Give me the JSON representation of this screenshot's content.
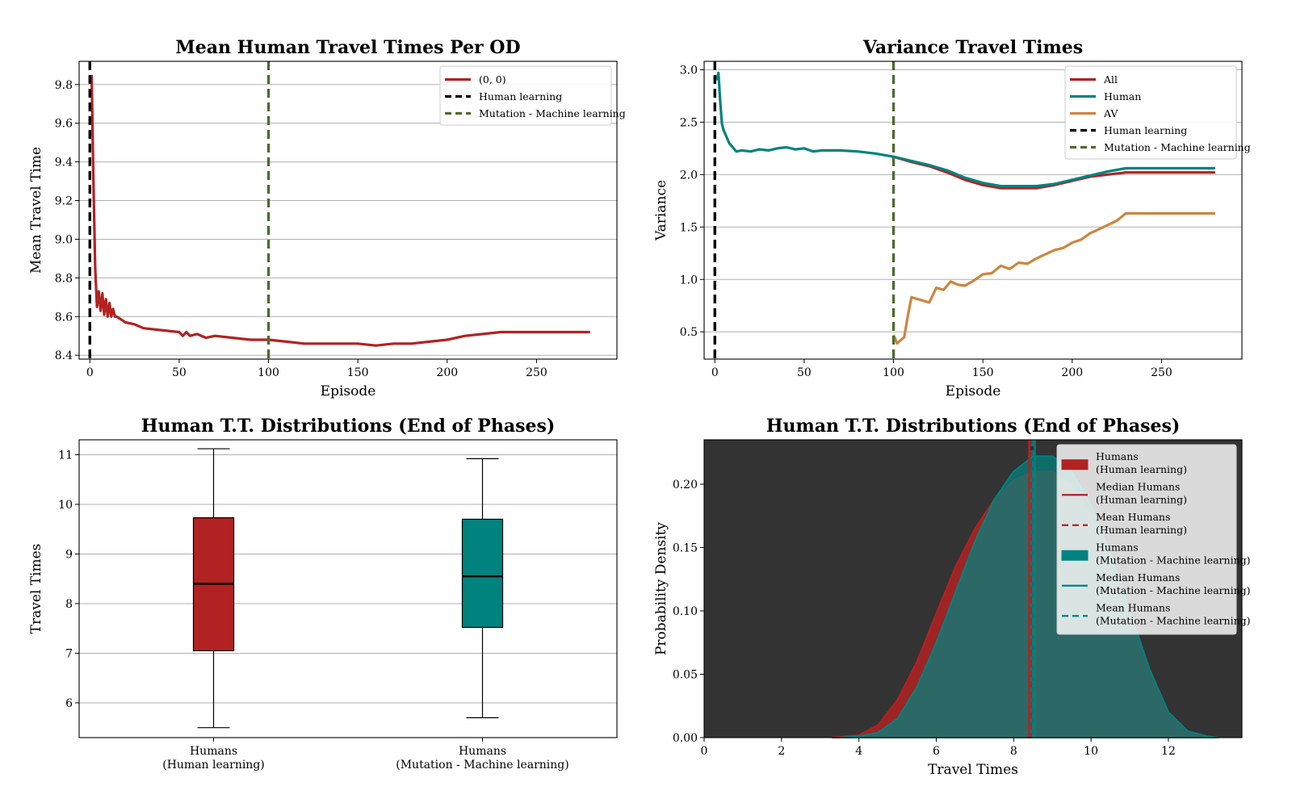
{
  "chart_data": [
    {
      "type": "line",
      "title": "Mean Human Travel Times Per OD",
      "xlabel": "Episode",
      "ylabel": "Mean Travel Time",
      "xlim": [
        -6,
        295
      ],
      "ylim": [
        8.38,
        9.92
      ],
      "xticks": [
        0,
        50,
        100,
        150,
        200,
        250
      ],
      "yticks": [
        8.4,
        8.6,
        8.8,
        9.0,
        9.2,
        9.4,
        9.6,
        9.8
      ],
      "ytick_labels": [
        "8.4",
        "8.6",
        "8.8",
        "9.0",
        "9.2",
        "9.4",
        "9.6",
        "9.8"
      ],
      "grid": "horizontal",
      "legend_position": "top-right",
      "series": [
        {
          "name": "(0, 0)",
          "color": "#b22222",
          "x": [
            1,
            2,
            3,
            4,
            5,
            6,
            7,
            8,
            9,
            10,
            11,
            12,
            13,
            14,
            15,
            20,
            25,
            30,
            40,
            50,
            52,
            54,
            56,
            60,
            65,
            70,
            80,
            90,
            100,
            110,
            120,
            130,
            140,
            150,
            160,
            170,
            180,
            190,
            200,
            210,
            220,
            230,
            240,
            250,
            260,
            270,
            280
          ],
          "y": [
            9.85,
            9.3,
            8.85,
            8.65,
            8.73,
            8.63,
            8.72,
            8.61,
            8.69,
            8.6,
            8.67,
            8.6,
            8.64,
            8.6,
            8.6,
            8.57,
            8.56,
            8.54,
            8.53,
            8.52,
            8.5,
            8.52,
            8.5,
            8.51,
            8.49,
            8.5,
            8.49,
            8.48,
            8.48,
            8.47,
            8.46,
            8.46,
            8.46,
            8.46,
            8.45,
            8.46,
            8.46,
            8.47,
            8.48,
            8.5,
            8.51,
            8.52,
            8.52,
            8.52,
            8.52,
            8.52,
            8.52
          ]
        },
        {
          "name": "Human learning",
          "color": "#000000",
          "style": "dashed",
          "vline": 0
        },
        {
          "name": "Mutation - Machine learning",
          "color": "#4e6b2e",
          "style": "dashed",
          "vline": 100
        }
      ]
    },
    {
      "type": "line",
      "title": "Variance Travel Times",
      "xlabel": "Episode",
      "ylabel": "Variance",
      "xlim": [
        -6,
        295
      ],
      "ylim": [
        0.24,
        3.08
      ],
      "xticks": [
        0,
        50,
        100,
        150,
        200,
        250
      ],
      "yticks": [
        0.5,
        1.0,
        1.5,
        2.0,
        2.5,
        3.0
      ],
      "ytick_labels": [
        "0.5",
        "1.0",
        "1.5",
        "2.0",
        "2.5",
        "3.0"
      ],
      "grid": "horizontal",
      "legend_position": "top-right",
      "series": [
        {
          "name": "All",
          "color": "#b22222",
          "x": [
            100,
            110,
            120,
            130,
            140,
            150,
            160,
            170,
            180,
            190,
            200,
            210,
            220,
            230,
            240,
            250,
            260,
            270,
            280
          ],
          "y": [
            2.17,
            2.12,
            2.08,
            2.02,
            1.95,
            1.9,
            1.87,
            1.87,
            1.87,
            1.9,
            1.94,
            1.98,
            2.0,
            2.02,
            2.02,
            2.02,
            2.02,
            2.02,
            2.02
          ]
        },
        {
          "name": "Human",
          "color": "#00827f",
          "x": [
            1,
            2,
            3,
            4,
            5,
            6,
            8,
            10,
            12,
            15,
            20,
            25,
            30,
            35,
            40,
            45,
            50,
            55,
            60,
            70,
            80,
            90,
            100,
            110,
            120,
            130,
            140,
            150,
            160,
            170,
            180,
            190,
            200,
            210,
            220,
            230,
            240,
            250,
            260,
            270,
            280
          ],
          "y": [
            2.9,
            2.97,
            2.7,
            2.48,
            2.42,
            2.38,
            2.3,
            2.26,
            2.22,
            2.23,
            2.22,
            2.24,
            2.23,
            2.25,
            2.26,
            2.24,
            2.25,
            2.22,
            2.23,
            2.23,
            2.22,
            2.2,
            2.17,
            2.13,
            2.09,
            2.04,
            1.97,
            1.92,
            1.89,
            1.89,
            1.89,
            1.91,
            1.95,
            1.99,
            2.03,
            2.06,
            2.06,
            2.06,
            2.06,
            2.06,
            2.06
          ]
        },
        {
          "name": "AV",
          "color": "#cd853f",
          "x": [
            100,
            102,
            104,
            106,
            108,
            110,
            112,
            116,
            120,
            124,
            128,
            132,
            136,
            140,
            145,
            150,
            155,
            160,
            165,
            170,
            175,
            180,
            185,
            190,
            195,
            200,
            205,
            210,
            215,
            220,
            225,
            230,
            240,
            250,
            260,
            270,
            280
          ],
          "y": [
            0.47,
            0.39,
            0.42,
            0.45,
            0.65,
            0.83,
            0.82,
            0.8,
            0.78,
            0.92,
            0.9,
            0.98,
            0.95,
            0.94,
            0.99,
            1.05,
            1.06,
            1.13,
            1.1,
            1.16,
            1.15,
            1.2,
            1.24,
            1.28,
            1.3,
            1.35,
            1.38,
            1.44,
            1.48,
            1.52,
            1.56,
            1.63,
            1.63,
            1.63,
            1.63,
            1.63,
            1.63
          ]
        },
        {
          "name": "Human learning",
          "color": "#000000",
          "style": "dashed",
          "vline": 0
        },
        {
          "name": "Mutation - Machine learning",
          "color": "#4e6b2e",
          "style": "dashed",
          "vline": 100
        }
      ]
    },
    {
      "type": "box",
      "title": "Human T.T. Distributions (End of Phases)",
      "ylabel": "Travel Times",
      "categories": [
        "Humans\n(Human learning)",
        "Humans\n(Mutation - Machine learning)"
      ],
      "category_lines": [
        [
          "Humans",
          "(Human learning)"
        ],
        [
          "Humans",
          "(Mutation - Machine learning)"
        ]
      ],
      "ylim": [
        5.3,
        11.3
      ],
      "yticks": [
        6,
        7,
        8,
        9,
        10,
        11
      ],
      "grid": "horizontal",
      "boxes": [
        {
          "color": "#b22222",
          "whisker_low": 5.5,
          "q1": 7.05,
          "median": 8.4,
          "q3": 9.73,
          "whisker_high": 11.12
        },
        {
          "color": "#00827f",
          "whisker_low": 5.7,
          "q1": 7.52,
          "median": 8.55,
          "q3": 9.7,
          "whisker_high": 10.92
        }
      ]
    },
    {
      "type": "area",
      "title": "Human T.T. Distributions (End of Phases)",
      "xlabel": "Travel Times",
      "ylabel": "Probability Density",
      "xlim": [
        0,
        13.9
      ],
      "ylim": [
        0,
        0.235
      ],
      "xticks": [
        0,
        2,
        4,
        6,
        8,
        10,
        12
      ],
      "yticks": [
        0,
        0.05,
        0.1,
        0.15,
        0.2
      ],
      "ytick_labels": [
        "0.00",
        "0.05",
        "0.10",
        "0.15",
        "0.20"
      ],
      "background": "#333333",
      "legend_position": "top-right",
      "series": [
        {
          "name": "Humans\n(Human learning)",
          "color": "#b22222",
          "x": [
            3.3,
            4.0,
            4.5,
            5.0,
            5.5,
            6.0,
            6.5,
            7.0,
            7.5,
            8.0,
            8.5,
            9.0,
            9.5,
            10.0,
            10.5,
            11.0,
            11.5,
            12.0,
            12.5,
            13.0,
            13.3
          ],
          "y": [
            0.0,
            0.002,
            0.01,
            0.03,
            0.06,
            0.098,
            0.135,
            0.165,
            0.188,
            0.203,
            0.21,
            0.21,
            0.2,
            0.178,
            0.145,
            0.1,
            0.055,
            0.02,
            0.005,
            0.001,
            0.0
          ]
        },
        {
          "name": "Median Humans\n(Human learning)",
          "color": "#b22222",
          "style": "solid",
          "vline": 8.4
        },
        {
          "name": "Mean Humans\n(Human learning)",
          "color": "#b22222",
          "style": "dashed",
          "vline": 8.45
        },
        {
          "name": "Humans\n(Mutation - Machine learning)",
          "color": "#00827f",
          "x": [
            3.5,
            4.0,
            4.5,
            5.0,
            5.5,
            6.0,
            6.5,
            7.0,
            7.5,
            8.0,
            8.5,
            9.0,
            9.5,
            10.0,
            10.5,
            11.0,
            11.5,
            12.0,
            12.5,
            13.0,
            13.3
          ],
          "y": [
            0.0,
            0.001,
            0.004,
            0.015,
            0.04,
            0.075,
            0.115,
            0.155,
            0.188,
            0.21,
            0.222,
            0.222,
            0.21,
            0.183,
            0.145,
            0.1,
            0.055,
            0.02,
            0.005,
            0.001,
            0.0
          ]
        },
        {
          "name": "Median Humans\n(Mutation - Machine learning)",
          "color": "#00827f",
          "style": "solid",
          "vline": 8.55
        },
        {
          "name": "Mean Humans\n(Mutation - Machine learning)",
          "color": "#00827f",
          "style": "dashed",
          "vline": 8.5
        }
      ]
    }
  ]
}
